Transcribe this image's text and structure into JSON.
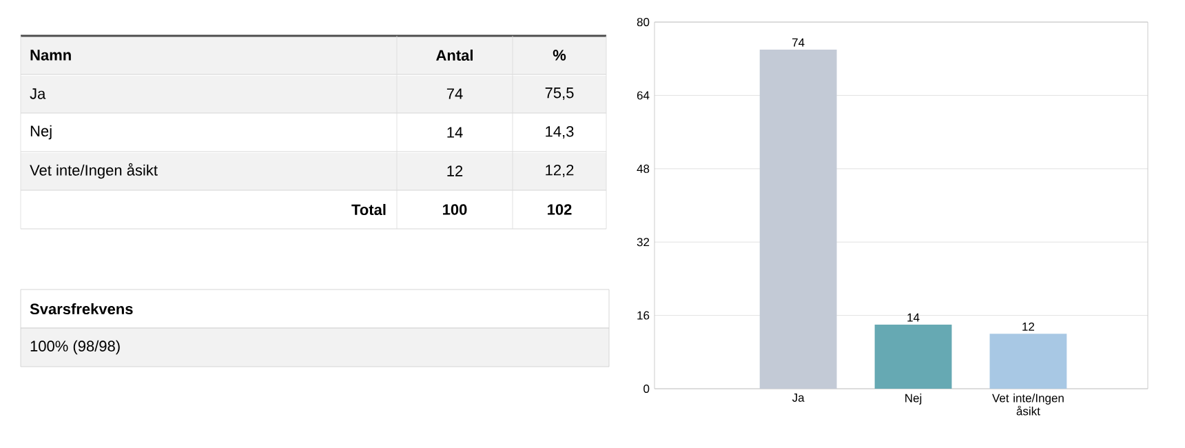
{
  "chart_data": [
    {
      "type": "other",
      "annotations": [
        "Namn",
        "Antal",
        "%",
        "Ja",
        "74",
        "75,5",
        "Nej",
        "14",
        "14,3",
        "Vet inte/Ingen åsikt",
        "12",
        "12,2",
        "Total",
        "100",
        "102",
        "Svarsfrekvens",
        "100% (98/98)"
      ]
    },
    {
      "type": "bar",
      "categories": [
        "Ja",
        "Nej",
        "Vet inte/Ingen åsikt"
      ],
      "values": [
        74,
        14,
        12
      ],
      "colors": [
        "#c3cad6",
        "#66a9b3",
        "#a8c8e4"
      ],
      "ylim": [
        0,
        80
      ],
      "yticks": [
        0,
        16,
        32,
        48,
        64,
        80
      ],
      "grid": "y",
      "data_labels": true
    }
  ]
}
